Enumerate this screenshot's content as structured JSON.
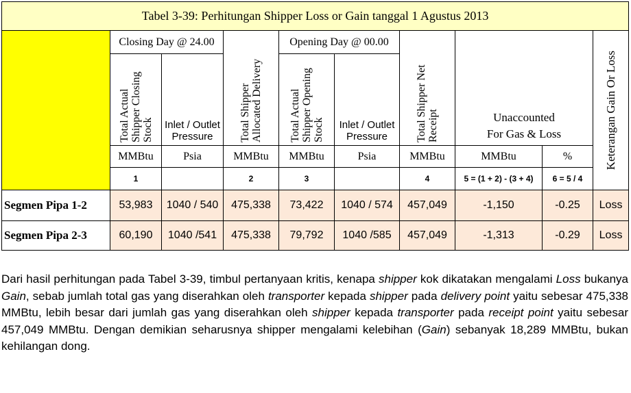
{
  "table": {
    "title": "Tabel 3-39: Perhitungan Shipper Loss or Gain tanggal 1 Agustus 2013",
    "groups": [
      "Closing Day @ 24.00",
      "Opening Day @ 00.00"
    ],
    "headers": [
      "Total Actual Shipper Closing Stock",
      "Inlet / Outlet Pressure",
      "Total Shipper Allocated Delivery",
      "Total Actual Shipper Opening Stock",
      "Inlet / Outlet Pressure",
      "Total Shipper Net Receipt",
      "Unaccounted For Gas & Loss",
      "Keterangan Gain Or Loss"
    ],
    "units": [
      "MMBtu",
      "Psia",
      "MMBtu",
      "MMBtu",
      "Psia",
      "MMBtu",
      "MMBtu",
      "%"
    ],
    "numbers": [
      "1",
      "2",
      "3",
      "4",
      "5 = (1 + 2) - (3 + 4)",
      "6 = 5 / 4"
    ],
    "rows": [
      [
        "Segmen Pipa 1-2",
        "53,983",
        "1040 / 540",
        "475,338",
        "73,422",
        "1040 / 574",
        "457,049",
        "-1,150",
        "-0.25",
        "Loss"
      ],
      [
        "Segmen Pipa 2-3",
        "60,190",
        "1040  /541",
        "475,338",
        "79,792",
        "1040  /585",
        "457,049",
        "-1,313",
        "-0.29",
        "Loss"
      ]
    ]
  },
  "paragraph": {
    "runs": [
      {
        "text": "Dari hasil perhitungan pada Tabel 3-39, timbul pertanyaan kritis, kenapa ",
        "italic": false
      },
      {
        "text": "shipper",
        "italic": true
      },
      {
        "text": " kok dikatakan mengalami ",
        "italic": false
      },
      {
        "text": "Loss",
        "italic": true
      },
      {
        "text": " bukanya ",
        "italic": false
      },
      {
        "text": "Gain",
        "italic": true
      },
      {
        "text": ", sebab jumlah total gas yang diserahkan oleh ",
        "italic": false
      },
      {
        "text": "transporter",
        "italic": true
      },
      {
        "text": " kepada ",
        "italic": false
      },
      {
        "text": "shipper",
        "italic": true
      },
      {
        "text": " pada ",
        "italic": false
      },
      {
        "text": "delivery point",
        "italic": true
      },
      {
        "text": " yaitu sebesar 475,338 MMBtu, lebih besar dari jumlah gas yang diserahkan oleh ",
        "italic": false
      },
      {
        "text": "shipper",
        "italic": true
      },
      {
        "text": " kepada ",
        "italic": false
      },
      {
        "text": "transporter",
        "italic": true
      },
      {
        "text": " pada ",
        "italic": false
      },
      {
        "text": "receipt point",
        "italic": true
      },
      {
        "text": " yaitu sebesar 457,049 MMBtu. Dengan demikian seharusnya shipper mengalami kelebihan (",
        "italic": false
      },
      {
        "text": "Gain",
        "italic": true
      },
      {
        "text": ") sebanyak 18,289 MMBtu, bukan kehilangan dong.",
        "italic": false
      }
    ]
  }
}
